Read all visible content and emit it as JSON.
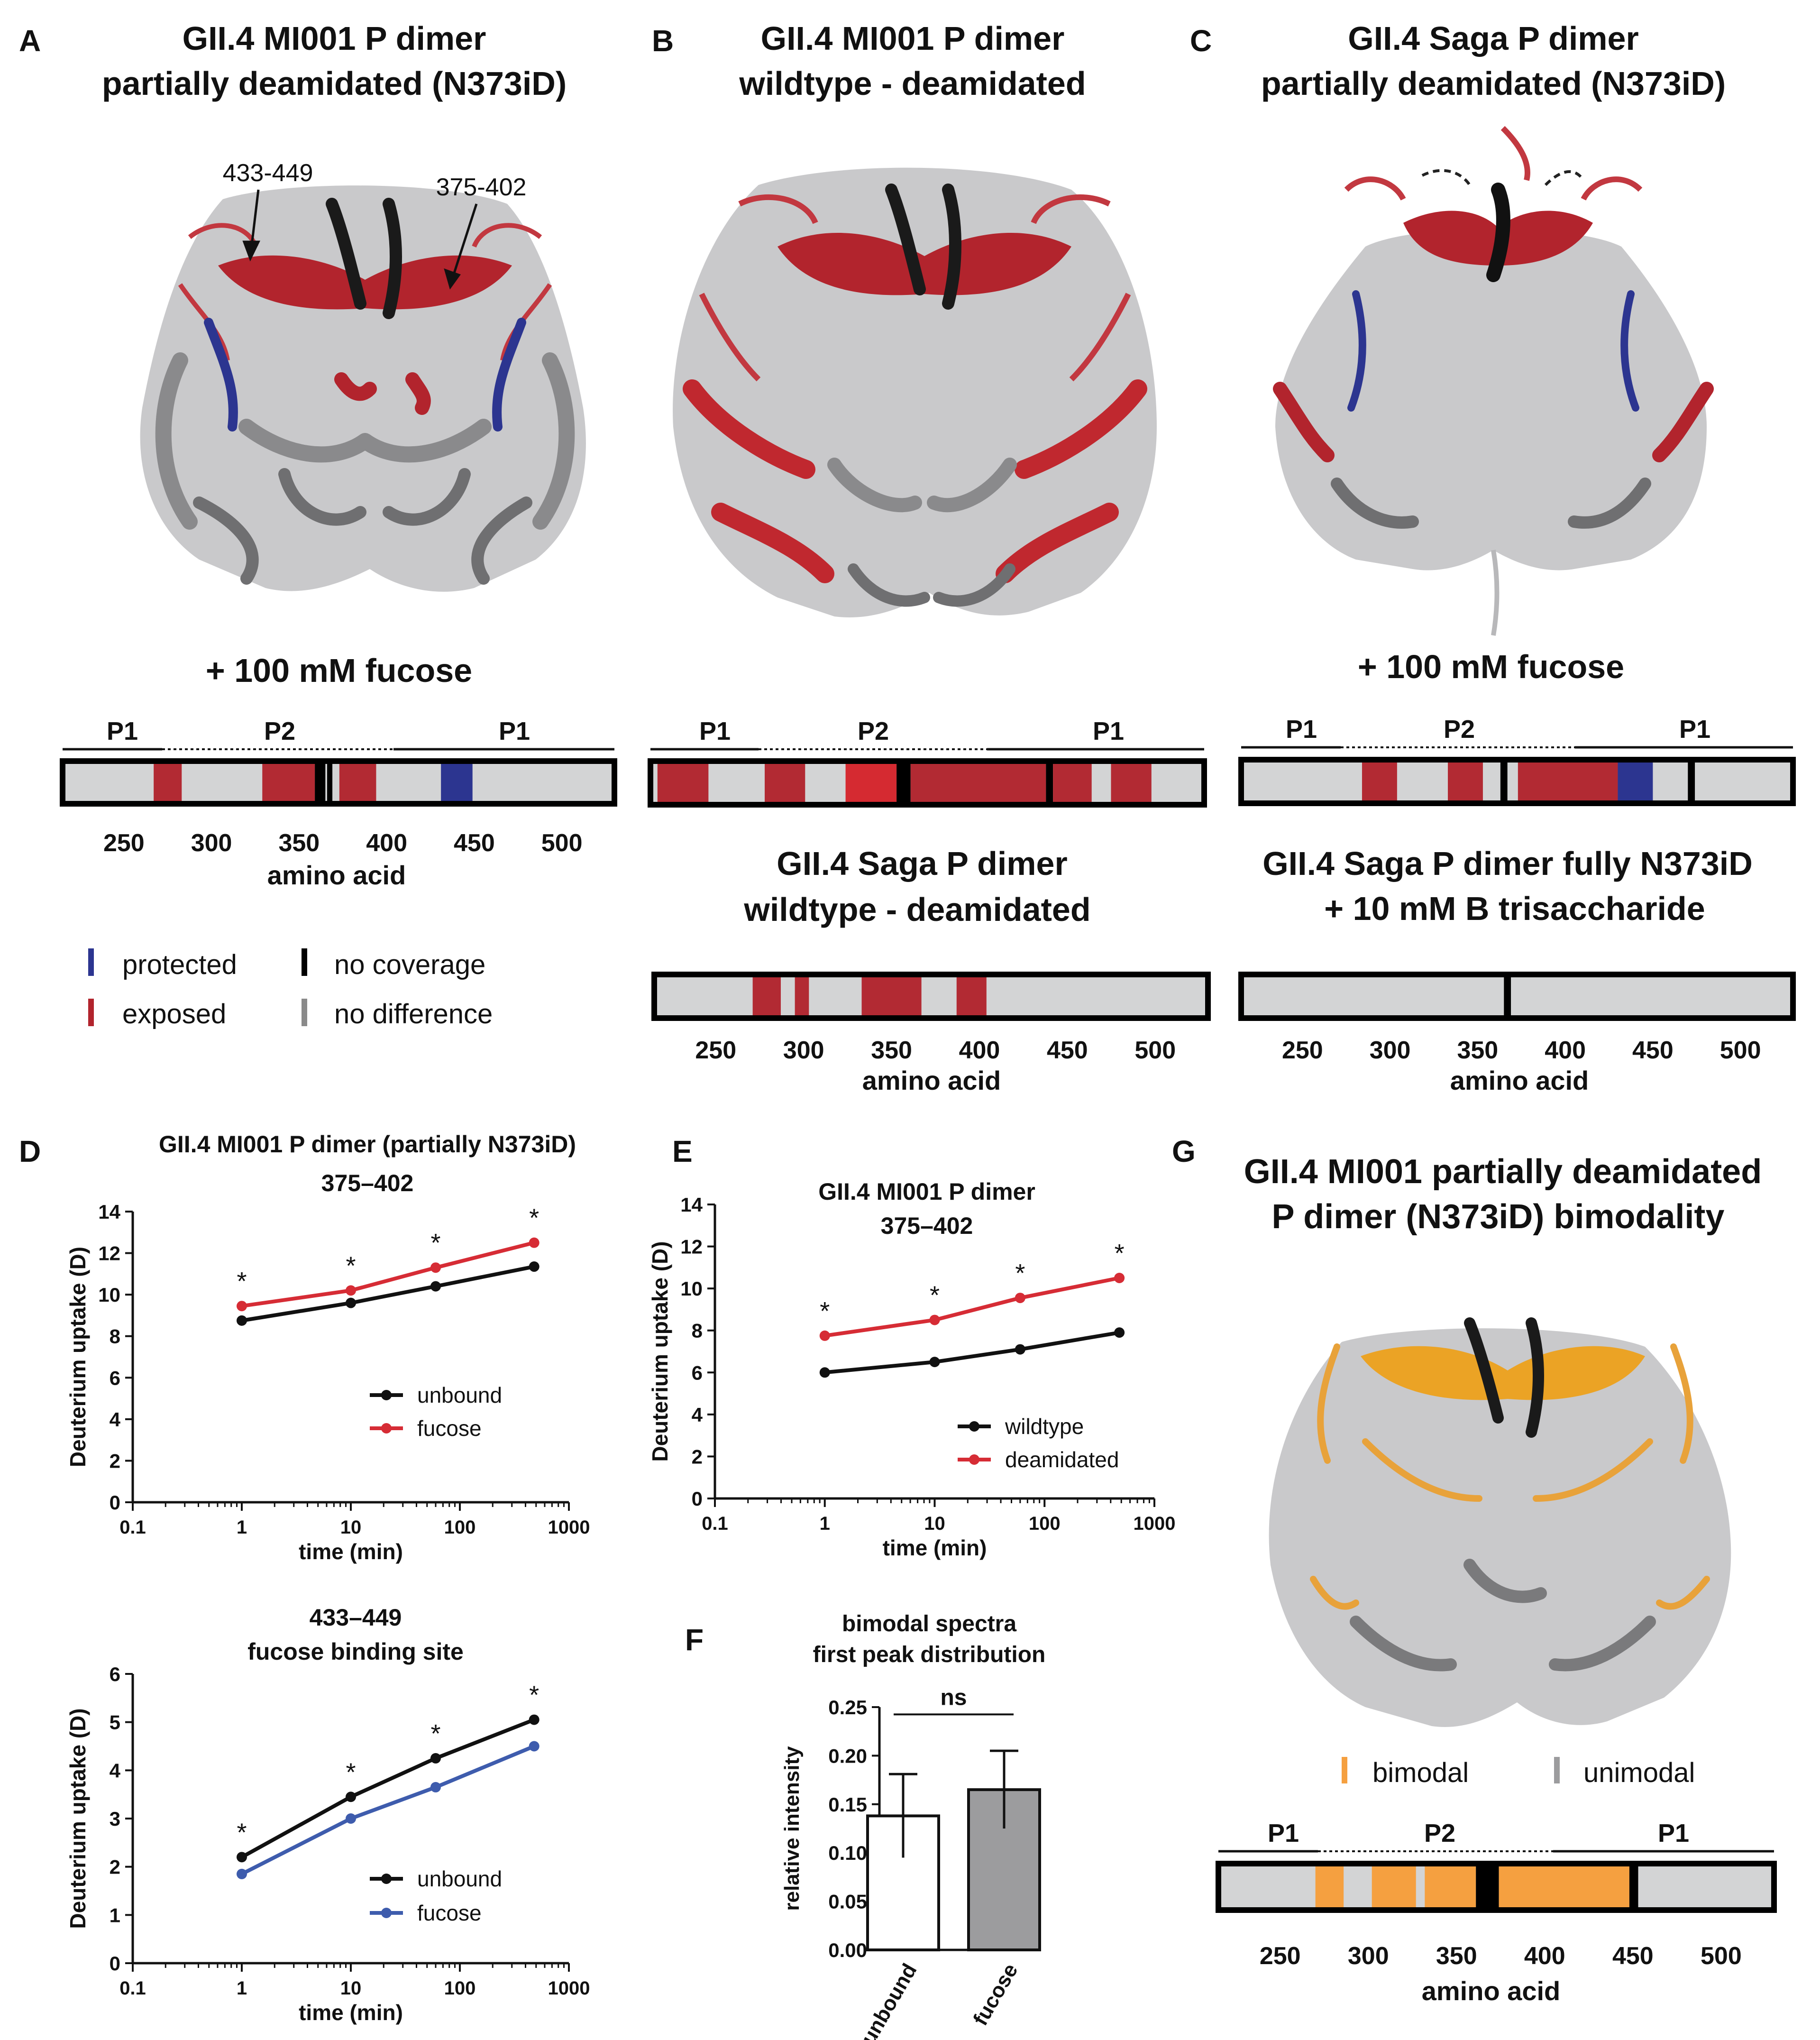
{
  "colors": {
    "protected": "#2c3590",
    "exposed": "#b22a33",
    "exposed_bright": "#d52a31",
    "no_coverage": "#000000",
    "no_difference": "#d3d4d5",
    "bimodal": "#f5a040",
    "unbound_line": "#111111",
    "fucose_red": "#d62c35",
    "fucose_blue": "#3e5cad",
    "bar_fucose": "#9c9c9e"
  },
  "panel_letters": {
    "A": "A",
    "B": "B",
    "C": "C",
    "D": "D",
    "E": "E",
    "F": "F",
    "G": "G"
  },
  "panelA": {
    "title1": "GII.4 MI001 P dimer",
    "title2": "partially deamidated (N373iD)",
    "annot_left": "433-449",
    "annot_right": "375-402",
    "treatment": "+ 100 mM fucose",
    "structure_icon": "protein-ribbon-structure"
  },
  "panelB": {
    "title1": "GII.4 MI001 P dimer",
    "title2": "wildtype - deamidated",
    "saga_title1": "GII.4 Saga P dimer",
    "saga_title2": "wildtype - deamidated"
  },
  "panelC": {
    "title1": "GII.4 Saga P dimer",
    "title2": "partially deamidated (N373iD)",
    "treatment": "+ 100 mM fucose",
    "full_title1": "GII.4 Saga P dimer fully N373iD",
    "full_title2": "+ 10 mM B trisaccharide"
  },
  "domains": {
    "p1": "P1",
    "p2": "P2"
  },
  "axis": {
    "ticks": [
      "250",
      "300",
      "350",
      "400",
      "450",
      "500"
    ],
    "label": "amino acid"
  },
  "legend": {
    "protected": "protected",
    "exposed": "exposed",
    "no_coverage": "no coverage",
    "no_difference": "no difference"
  },
  "panelG": {
    "title1": "GII.4 MI001 partially deamidated",
    "title2": "P dimer (N373iD) bimodality",
    "legend_bimodal": "bimodal",
    "legend_unimodal": "unimodal"
  },
  "chart_data": [
    {
      "type": "line",
      "panel": "D",
      "title": "GII.4 MI001 P dimer (partially N373iD)",
      "subtitle": "375–402",
      "xlabel": "time (min)",
      "ylabel": "Deuterium uptake (D)",
      "xscale": "log",
      "x_ticks": [
        "0.1",
        "1",
        "10",
        "100",
        "1000"
      ],
      "y_ticks": [
        "0",
        "2",
        "4",
        "6",
        "8",
        "10",
        "12",
        "14"
      ],
      "ylim": [
        0,
        14
      ],
      "x": [
        1,
        10,
        60,
        480
      ],
      "series": [
        {
          "name": "unbound",
          "values": [
            8.75,
            9.6,
            10.4,
            11.35
          ]
        },
        {
          "name": "fucose",
          "values": [
            9.45,
            10.2,
            11.3,
            12.5
          ]
        }
      ],
      "significance": [
        "*",
        "*",
        "*",
        "*"
      ],
      "legend_position": "center-right"
    },
    {
      "type": "line",
      "panel": "D",
      "title": "433–449",
      "subtitle": "fucose binding site",
      "xlabel": "time (min)",
      "ylabel": "Deuterium uptake (D)",
      "xscale": "log",
      "x_ticks": [
        "0.1",
        "1",
        "10",
        "100",
        "1000"
      ],
      "y_ticks": [
        "0",
        "1",
        "2",
        "3",
        "4",
        "5",
        "6"
      ],
      "ylim": [
        0,
        6
      ],
      "x": [
        1,
        10,
        60,
        480
      ],
      "series": [
        {
          "name": "unbound",
          "values": [
            2.2,
            3.45,
            4.25,
            5.05
          ]
        },
        {
          "name": "fucose",
          "values": [
            1.85,
            3.0,
            3.65,
            4.5
          ]
        }
      ],
      "significance": [
        "*",
        "*",
        "*",
        "*"
      ],
      "legend_position": "bottom-right"
    },
    {
      "type": "line",
      "panel": "E",
      "title": "GII.4 MI001 P dimer",
      "subtitle": "375–402",
      "xlabel": "time (min)",
      "ylabel": "Deuterium uptake (D)",
      "xscale": "log",
      "x_ticks": [
        "0.1",
        "1",
        "10",
        "100",
        "1000"
      ],
      "y_ticks": [
        "0",
        "2",
        "4",
        "6",
        "8",
        "10",
        "12",
        "14"
      ],
      "ylim": [
        0,
        14
      ],
      "x": [
        1,
        10,
        60,
        480
      ],
      "series": [
        {
          "name": "wildtype",
          "values": [
            6.0,
            6.5,
            7.1,
            7.9
          ]
        },
        {
          "name": "deamidated",
          "values": [
            7.75,
            8.5,
            9.55,
            10.5
          ]
        }
      ],
      "significance": [
        "*",
        "*",
        "*",
        "*"
      ],
      "legend_position": "bottom-right"
    },
    {
      "type": "bar",
      "panel": "F",
      "title": "bimodal spectra",
      "subtitle": "first peak distribution",
      "ylabel": "relative intensity",
      "categories": [
        "unbound",
        "fucose"
      ],
      "values": [
        0.138,
        0.165
      ],
      "errors": [
        0.043,
        0.04
      ],
      "y_ticks": [
        "0.00",
        "0.05",
        "0.10",
        "0.15",
        "0.20",
        "0.25"
      ],
      "ylim": [
        0,
        0.25
      ],
      "annotation": "ns"
    },
    {
      "type": "heatmap",
      "panel": "A",
      "description_source": "sequence bar (+ 100 mM fucose)",
      "xrange": [
        215,
        530
      ],
      "segments": [
        {
          "start": 267,
          "end": 283,
          "state": "exposed"
        },
        {
          "start": 329,
          "end": 359,
          "state": "exposed"
        },
        {
          "start": 359,
          "end": 365,
          "state": "no_coverage"
        },
        {
          "start": 366,
          "end": 369,
          "state": "no_coverage"
        },
        {
          "start": 373,
          "end": 394,
          "state": "exposed"
        },
        {
          "start": 431,
          "end": 449,
          "state": "protected"
        }
      ]
    },
    {
      "type": "heatmap",
      "panel": "B",
      "description_source": "MI001 wildtype - deamidated",
      "xrange": [
        215,
        530
      ],
      "segments": [
        {
          "start": 219,
          "end": 248,
          "state": "exposed"
        },
        {
          "start": 280,
          "end": 303,
          "state": "exposed"
        },
        {
          "start": 326,
          "end": 355,
          "state": "exposed_bright"
        },
        {
          "start": 355,
          "end": 363,
          "state": "no_coverage"
        },
        {
          "start": 363,
          "end": 440,
          "state": "exposed"
        },
        {
          "start": 440,
          "end": 444,
          "state": "no_coverage"
        },
        {
          "start": 444,
          "end": 466,
          "state": "exposed"
        },
        {
          "start": 477,
          "end": 500,
          "state": "exposed"
        }
      ]
    },
    {
      "type": "heatmap",
      "panel": "B",
      "description_source": "Saga wildtype - deamidated",
      "xrange": [
        215,
        530
      ],
      "segments": [
        {
          "start": 271,
          "end": 287,
          "state": "exposed"
        },
        {
          "start": 295,
          "end": 303,
          "state": "exposed"
        },
        {
          "start": 333,
          "end": 367,
          "state": "exposed"
        },
        {
          "start": 387,
          "end": 404,
          "state": "exposed"
        }
      ]
    },
    {
      "type": "heatmap",
      "panel": "C",
      "description_source": "Saga partially N373iD + 100 mM fucose",
      "xrange": [
        215,
        530
      ],
      "segments": [
        {
          "start": 284,
          "end": 304,
          "state": "exposed"
        },
        {
          "start": 333,
          "end": 353,
          "state": "exposed"
        },
        {
          "start": 363,
          "end": 367,
          "state": "no_coverage"
        },
        {
          "start": 373,
          "end": 430,
          "state": "exposed"
        },
        {
          "start": 430,
          "end": 450,
          "state": "protected"
        },
        {
          "start": 470,
          "end": 474,
          "state": "no_coverage"
        }
      ]
    },
    {
      "type": "heatmap",
      "panel": "C",
      "description_source": "Saga fully N373iD + 10 mM B trisaccharide",
      "xrange": [
        215,
        530
      ],
      "segments": [
        {
          "start": 365,
          "end": 369,
          "state": "no_coverage"
        }
      ]
    },
    {
      "type": "heatmap",
      "panel": "G",
      "description_source": "bimodality bar",
      "xrange": [
        215,
        530
      ],
      "segments": [
        {
          "start": 270,
          "end": 286,
          "state": "bimodal"
        },
        {
          "start": 302,
          "end": 327,
          "state": "bimodal"
        },
        {
          "start": 332,
          "end": 361,
          "state": "bimodal"
        },
        {
          "start": 361,
          "end": 374,
          "state": "no_coverage"
        },
        {
          "start": 374,
          "end": 448,
          "state": "bimodal"
        },
        {
          "start": 448,
          "end": 453,
          "state": "no_coverage"
        }
      ]
    }
  ]
}
